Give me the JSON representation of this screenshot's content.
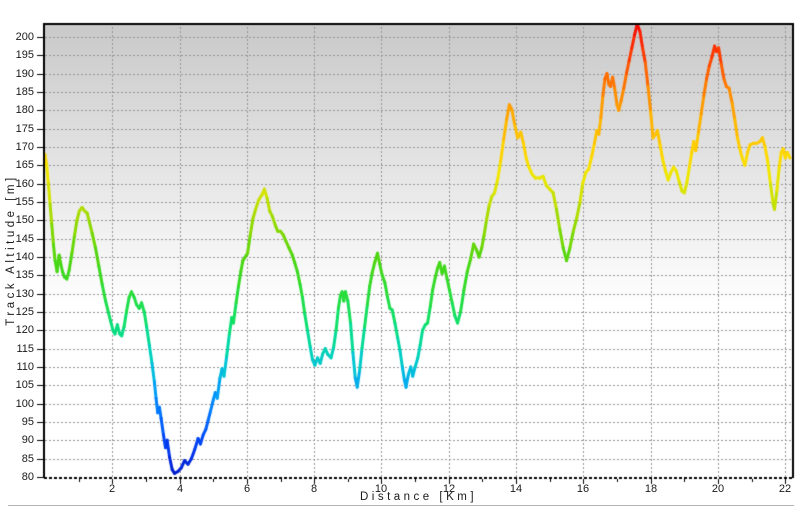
{
  "window": {
    "background": "#ffffff"
  },
  "colors": {
    "plot_bg_top": "#c9c9c9",
    "plot_bg_bottom": "#ffffff",
    "grid": "#969696",
    "axis": "#000000",
    "tick_label": "#1a1a1a",
    "bottom_separator": "#b3b3b6"
  },
  "chart_data": {
    "type": "line",
    "title": "",
    "xlabel": "Distance [Km]",
    "ylabel": "Track Altitude [m]",
    "xlim": [
      0,
      22.2
    ],
    "ylim": [
      80,
      203.8
    ],
    "x_ticks": [
      2,
      4,
      6,
      8,
      10,
      12,
      14,
      16,
      18,
      20,
      22
    ],
    "x_minor_tick_step": 1,
    "y_ticks": [
      80,
      85,
      90,
      95,
      100,
      105,
      110,
      115,
      120,
      125,
      130,
      135,
      140,
      145,
      150,
      155,
      160,
      165,
      170,
      175,
      180,
      185,
      190,
      195,
      200
    ],
    "grid": "dashed",
    "legend": "none",
    "line_width": 3,
    "color_encoding": "altitude",
    "colormap": [
      [
        80,
        "#0018c8"
      ],
      [
        86,
        "#0030e8"
      ],
      [
        92,
        "#0050fa"
      ],
      [
        98,
        "#0078ff"
      ],
      [
        104,
        "#00a0f5"
      ],
      [
        110,
        "#00c4d8"
      ],
      [
        116,
        "#00d8a8"
      ],
      [
        122,
        "#0ce070"
      ],
      [
        128,
        "#22de44"
      ],
      [
        134,
        "#38da24"
      ],
      [
        140,
        "#50d60e"
      ],
      [
        146,
        "#7cd800"
      ],
      [
        152,
        "#aadc00"
      ],
      [
        158,
        "#d8e400"
      ],
      [
        163,
        "#f2e600"
      ],
      [
        168,
        "#ffd800"
      ],
      [
        173,
        "#ffc400"
      ],
      [
        178,
        "#ffac00"
      ],
      [
        184,
        "#ff8e00"
      ],
      [
        190,
        "#ff6400"
      ],
      [
        195,
        "#ff3c00"
      ],
      [
        200,
        "#ff1e00"
      ],
      [
        204,
        "#ee0000"
      ]
    ],
    "series": [
      {
        "name": "Track Altitude",
        "points": [
          [
            0,
            168
          ],
          [
            0.05,
            165
          ],
          [
            0.1,
            160
          ],
          [
            0.15,
            154.5
          ],
          [
            0.2,
            149
          ],
          [
            0.25,
            143.5
          ],
          [
            0.3,
            139
          ],
          [
            0.36,
            136
          ],
          [
            0.42,
            140.5
          ],
          [
            0.47,
            138
          ],
          [
            0.52,
            136
          ],
          [
            0.58,
            134.5
          ],
          [
            0.65,
            134
          ],
          [
            0.72,
            136.5
          ],
          [
            0.8,
            141
          ],
          [
            0.88,
            146
          ],
          [
            0.95,
            150
          ],
          [
            1.02,
            152.5
          ],
          [
            1.1,
            153.5
          ],
          [
            1.18,
            152.5
          ],
          [
            1.25,
            152
          ],
          [
            1.32,
            149.5
          ],
          [
            1.4,
            146.5
          ],
          [
            1.5,
            142.5
          ],
          [
            1.6,
            137.5
          ],
          [
            1.7,
            132.5
          ],
          [
            1.8,
            128
          ],
          [
            1.88,
            125
          ],
          [
            1.95,
            122.5
          ],
          [
            2.02,
            120
          ],
          [
            2.08,
            119
          ],
          [
            2.15,
            121.5
          ],
          [
            2.22,
            119
          ],
          [
            2.28,
            118.5
          ],
          [
            2.35,
            121
          ],
          [
            2.42,
            125
          ],
          [
            2.5,
            129
          ],
          [
            2.57,
            130.5
          ],
          [
            2.65,
            129
          ],
          [
            2.72,
            127
          ],
          [
            2.8,
            126
          ],
          [
            2.87,
            127.5
          ],
          [
            2.95,
            125
          ],
          [
            3.02,
            121
          ],
          [
            3.1,
            116
          ],
          [
            3.18,
            111
          ],
          [
            3.25,
            106
          ],
          [
            3.3,
            101.5
          ],
          [
            3.35,
            97.5
          ],
          [
            3.4,
            99
          ],
          [
            3.45,
            96
          ],
          [
            3.52,
            91.5
          ],
          [
            3.58,
            88
          ],
          [
            3.63,
            90
          ],
          [
            3.7,
            85.5
          ],
          [
            3.78,
            82
          ],
          [
            3.85,
            81
          ],
          [
            3.95,
            81.5
          ],
          [
            4.05,
            82.5
          ],
          [
            4.15,
            84.5
          ],
          [
            4.25,
            83.5
          ],
          [
            4.35,
            85
          ],
          [
            4.45,
            87.5
          ],
          [
            4.55,
            90.5
          ],
          [
            4.62,
            89
          ],
          [
            4.7,
            91.5
          ],
          [
            4.78,
            93
          ],
          [
            4.85,
            95.5
          ],
          [
            4.92,
            98
          ],
          [
            5,
            101
          ],
          [
            5.06,
            103
          ],
          [
            5.12,
            101.5
          ],
          [
            5.2,
            107
          ],
          [
            5.26,
            109.5
          ],
          [
            5.32,
            107.5
          ],
          [
            5.4,
            113
          ],
          [
            5.48,
            119
          ],
          [
            5.55,
            123.5
          ],
          [
            5.6,
            122
          ],
          [
            5.68,
            127.5
          ],
          [
            5.75,
            132
          ],
          [
            5.82,
            136
          ],
          [
            5.88,
            139
          ],
          [
            5.95,
            140
          ],
          [
            6.02,
            141
          ],
          [
            6.1,
            146
          ],
          [
            6.18,
            150.5
          ],
          [
            6.26,
            153
          ],
          [
            6.35,
            155.5
          ],
          [
            6.45,
            157
          ],
          [
            6.52,
            158.5
          ],
          [
            6.6,
            156
          ],
          [
            6.68,
            152.5
          ],
          [
            6.76,
            151
          ],
          [
            6.85,
            148.5
          ],
          [
            6.92,
            147
          ],
          [
            7,
            147
          ],
          [
            7.08,
            146
          ],
          [
            7.15,
            144.5
          ],
          [
            7.25,
            142.5
          ],
          [
            7.35,
            140.5
          ],
          [
            7.42,
            138.5
          ],
          [
            7.5,
            136
          ],
          [
            7.58,
            132.5
          ],
          [
            7.65,
            129
          ],
          [
            7.72,
            124.5
          ],
          [
            7.8,
            120
          ],
          [
            7.88,
            115.5
          ],
          [
            7.95,
            112
          ],
          [
            8.02,
            110.5
          ],
          [
            8.1,
            112.5
          ],
          [
            8.18,
            111
          ],
          [
            8.25,
            113.5
          ],
          [
            8.33,
            115
          ],
          [
            8.4,
            113.5
          ],
          [
            8.5,
            112.5
          ],
          [
            8.58,
            115.5
          ],
          [
            8.65,
            120
          ],
          [
            8.72,
            126
          ],
          [
            8.78,
            129.5
          ],
          [
            8.83,
            130.5
          ],
          [
            8.88,
            128
          ],
          [
            8.93,
            130.5
          ],
          [
            9,
            128
          ],
          [
            9.08,
            122
          ],
          [
            9.15,
            114
          ],
          [
            9.22,
            107
          ],
          [
            9.28,
            104.5
          ],
          [
            9.35,
            109
          ],
          [
            9.42,
            115
          ],
          [
            9.5,
            121
          ],
          [
            9.58,
            127
          ],
          [
            9.65,
            132
          ],
          [
            9.72,
            135.5
          ],
          [
            9.8,
            138.5
          ],
          [
            9.88,
            141
          ],
          [
            9.95,
            138
          ],
          [
            10.02,
            135
          ],
          [
            10.1,
            133
          ],
          [
            10.18,
            129
          ],
          [
            10.25,
            126
          ],
          [
            10.32,
            125.5
          ],
          [
            10.4,
            122
          ],
          [
            10.48,
            118
          ],
          [
            10.55,
            114.5
          ],
          [
            10.62,
            110
          ],
          [
            10.68,
            106.5
          ],
          [
            10.73,
            104.5
          ],
          [
            10.8,
            108
          ],
          [
            10.87,
            110
          ],
          [
            10.93,
            107.5
          ],
          [
            11,
            110
          ],
          [
            11.08,
            112.5
          ],
          [
            11.15,
            116
          ],
          [
            11.22,
            120
          ],
          [
            11.3,
            121.5
          ],
          [
            11.37,
            122
          ],
          [
            11.45,
            126.5
          ],
          [
            11.52,
            131
          ],
          [
            11.6,
            134.5
          ],
          [
            11.67,
            137
          ],
          [
            11.73,
            138.5
          ],
          [
            11.8,
            135.5
          ],
          [
            11.87,
            137.5
          ],
          [
            11.95,
            134
          ],
          [
            12.02,
            131
          ],
          [
            12.1,
            127.5
          ],
          [
            12.18,
            124
          ],
          [
            12.26,
            122
          ],
          [
            12.35,
            125
          ],
          [
            12.45,
            131
          ],
          [
            12.55,
            136
          ],
          [
            12.65,
            139.5
          ],
          [
            12.74,
            143.5
          ],
          [
            12.82,
            142
          ],
          [
            12.9,
            140
          ],
          [
            12.98,
            142.5
          ],
          [
            13.05,
            146
          ],
          [
            13.12,
            150
          ],
          [
            13.2,
            154
          ],
          [
            13.28,
            156.5
          ],
          [
            13.36,
            157.5
          ],
          [
            13.45,
            161
          ],
          [
            13.54,
            166
          ],
          [
            13.63,
            172
          ],
          [
            13.72,
            177.5
          ],
          [
            13.8,
            181.5
          ],
          [
            13.88,
            180
          ],
          [
            13.96,
            176
          ],
          [
            14.05,
            172.5
          ],
          [
            14.14,
            174
          ],
          [
            14.22,
            171
          ],
          [
            14.3,
            167
          ],
          [
            14.38,
            164.5
          ],
          [
            14.48,
            162.5
          ],
          [
            14.58,
            161.5
          ],
          [
            14.7,
            161.5
          ],
          [
            14.8,
            162
          ],
          [
            14.9,
            159.5
          ],
          [
            15,
            158.5
          ],
          [
            15.1,
            157.5
          ],
          [
            15.2,
            153
          ],
          [
            15.3,
            147.5
          ],
          [
            15.4,
            142.5
          ],
          [
            15.5,
            139
          ],
          [
            15.6,
            142.5
          ],
          [
            15.7,
            147
          ],
          [
            15.8,
            150.5
          ],
          [
            15.9,
            155
          ],
          [
            15.98,
            160
          ],
          [
            16.07,
            163
          ],
          [
            16.16,
            164
          ],
          [
            16.25,
            167.5
          ],
          [
            16.33,
            171
          ],
          [
            16.4,
            174.5
          ],
          [
            16.46,
            173.5
          ],
          [
            16.52,
            178
          ],
          [
            16.58,
            184
          ],
          [
            16.64,
            188.5
          ],
          [
            16.7,
            190
          ],
          [
            16.76,
            187
          ],
          [
            16.81,
            186.5
          ],
          [
            16.87,
            189
          ],
          [
            16.93,
            186
          ],
          [
            17,
            181.5
          ],
          [
            17.05,
            180
          ],
          [
            17.12,
            182.5
          ],
          [
            17.2,
            186
          ],
          [
            17.28,
            190
          ],
          [
            17.36,
            193.5
          ],
          [
            17.44,
            197
          ],
          [
            17.52,
            200.5
          ],
          [
            17.6,
            203.5
          ],
          [
            17.68,
            201.5
          ],
          [
            17.76,
            197
          ],
          [
            17.84,
            193
          ],
          [
            17.92,
            186.5
          ],
          [
            18,
            179.5
          ],
          [
            18.07,
            172.5
          ],
          [
            18.15,
            173.5
          ],
          [
            18.2,
            174.5
          ],
          [
            18.28,
            170.5
          ],
          [
            18.36,
            166.5
          ],
          [
            18.44,
            163.5
          ],
          [
            18.52,
            161
          ],
          [
            18.6,
            163
          ],
          [
            18.68,
            164.5
          ],
          [
            18.76,
            163.5
          ],
          [
            18.85,
            160.5
          ],
          [
            18.93,
            158
          ],
          [
            19,
            157.5
          ],
          [
            19.08,
            160.5
          ],
          [
            19.15,
            164.5
          ],
          [
            19.22,
            168.5
          ],
          [
            19.28,
            171.5
          ],
          [
            19.34,
            169
          ],
          [
            19.42,
            174
          ],
          [
            19.5,
            179
          ],
          [
            19.58,
            184
          ],
          [
            19.66,
            188.5
          ],
          [
            19.74,
            192
          ],
          [
            19.82,
            194.5
          ],
          [
            19.9,
            197.5
          ],
          [
            19.96,
            196
          ],
          [
            20.02,
            197
          ],
          [
            20.1,
            192.5
          ],
          [
            20.18,
            188.5
          ],
          [
            20.25,
            186.5
          ],
          [
            20.33,
            186
          ],
          [
            20.42,
            182
          ],
          [
            20.5,
            177.5
          ],
          [
            20.58,
            172.5
          ],
          [
            20.65,
            169.5
          ],
          [
            20.72,
            167
          ],
          [
            20.8,
            165
          ],
          [
            20.88,
            168.5
          ],
          [
            20.95,
            170.5
          ],
          [
            21.05,
            171
          ],
          [
            21.15,
            171
          ],
          [
            21.25,
            171.5
          ],
          [
            21.32,
            172.5
          ],
          [
            21.4,
            170
          ],
          [
            21.48,
            166
          ],
          [
            21.56,
            160
          ],
          [
            21.64,
            154.5
          ],
          [
            21.68,
            153
          ],
          [
            21.75,
            158
          ],
          [
            21.82,
            164.5
          ],
          [
            21.88,
            168.5
          ],
          [
            21.94,
            169.5
          ],
          [
            22,
            167
          ],
          [
            22.06,
            168.5
          ],
          [
            22.14,
            167
          ]
        ]
      }
    ]
  }
}
